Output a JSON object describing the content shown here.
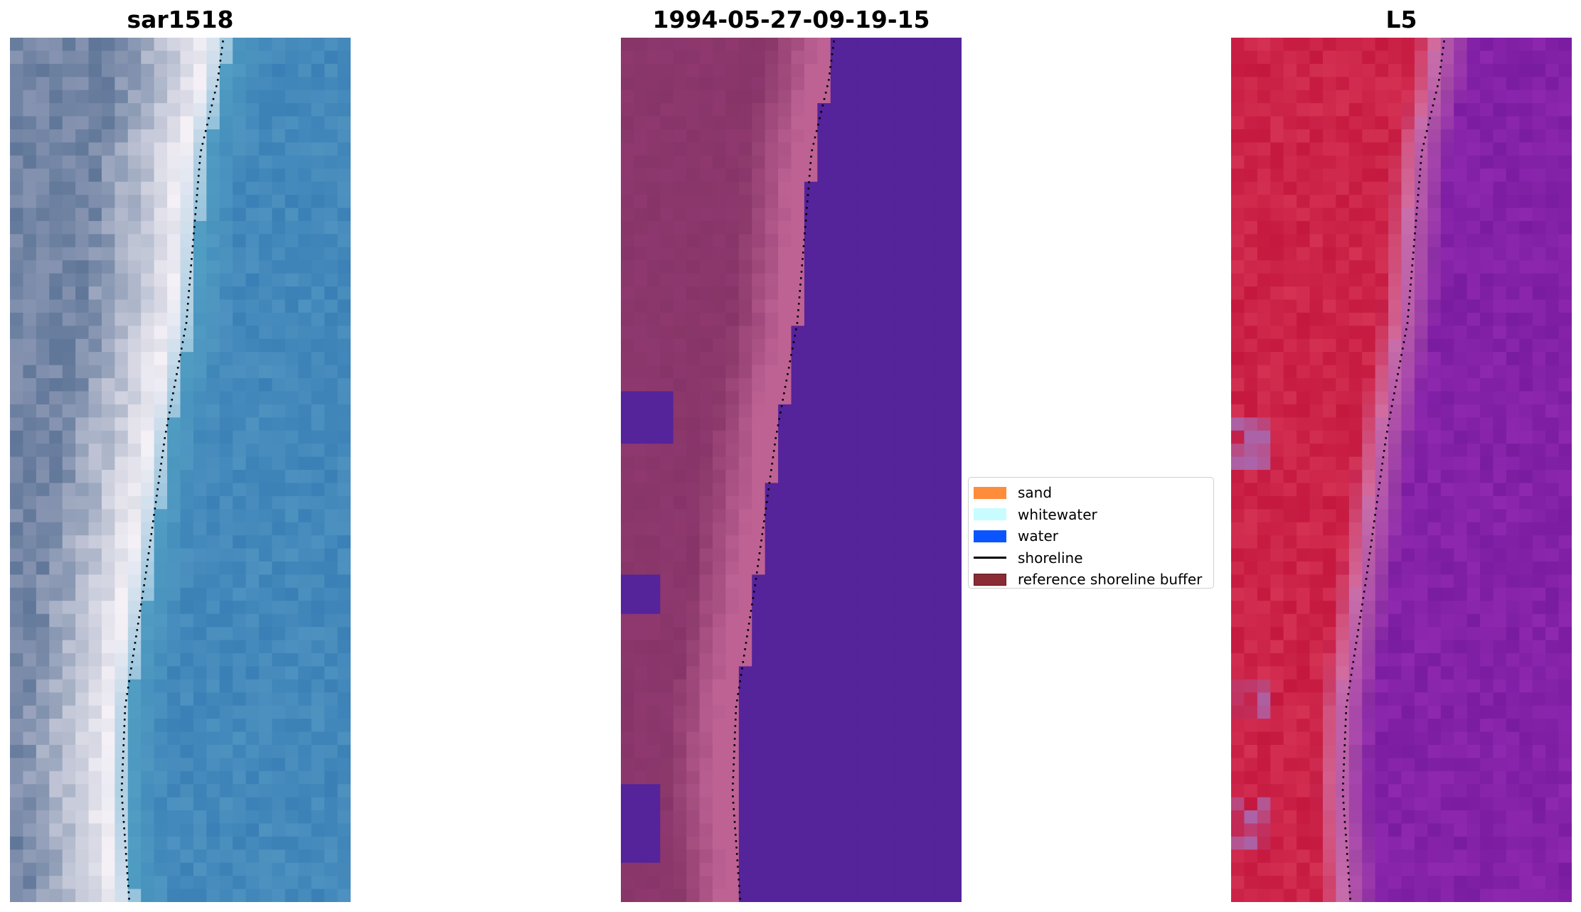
{
  "panels": [
    {
      "id": "rgb",
      "title": "sar1518"
    },
    {
      "id": "classification",
      "title": "1994-05-27-09-19-15"
    },
    {
      "id": "index",
      "title": "L5"
    }
  ],
  "legend": {
    "items": [
      {
        "label": "sand",
        "color": "#ff8c3a",
        "kind": "patch"
      },
      {
        "label": "whitewater",
        "color": "#c8fcff",
        "kind": "patch"
      },
      {
        "label": "water",
        "color": "#0a55ff",
        "kind": "patch"
      },
      {
        "label": "shoreline",
        "color": "#000000",
        "kind": "line"
      },
      {
        "label": "reference shoreline buffer",
        "color": "#8b2b33",
        "kind": "patch",
        "edge": "#5a1a20"
      }
    ]
  },
  "colors": {
    "classification_water": "#55239a",
    "classification_land_light": "#be6294",
    "classification_land_dark": "#873568",
    "index_land": "#c5183f",
    "index_water": "#7a1ca0"
  }
}
